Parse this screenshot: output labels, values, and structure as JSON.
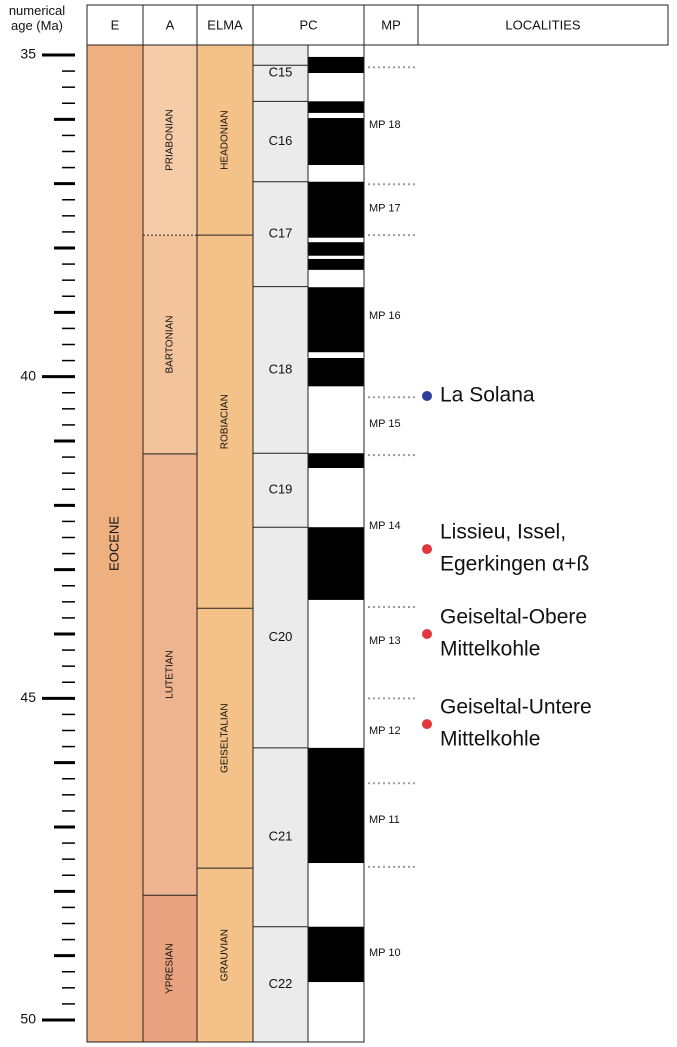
{
  "axis": {
    "label": "numerical age (Ma)",
    "lim": [
      35,
      50
    ],
    "ticks": [
      35,
      40,
      45,
      50
    ]
  },
  "header": {
    "E": "E",
    "A": "A",
    "ELMA": "ELMA",
    "PC": "PC",
    "MP": "MP",
    "LOCALITIES": "LOCALITIES"
  },
  "epochs": [
    {
      "label": "EOCENE",
      "start": 35,
      "end": 50,
      "color": "#edb07e"
    }
  ],
  "ages": [
    {
      "label": "PRIABONIAN",
      "start": 35,
      "end": 37.8,
      "color": "#f5cba8",
      "style": "dashed"
    },
    {
      "label": "BARTONIAN",
      "start": 37.8,
      "end": 41.2,
      "color": "#f3c39c",
      "style": "dashed"
    },
    {
      "label": "LUTETIAN",
      "start": 41.2,
      "end": 48.06,
      "color": "#eeb490",
      "style": "solid"
    },
    {
      "label": "YPRESIAN",
      "start": 48.06,
      "end": 50,
      "color": "#e9a27f",
      "style": "solid"
    }
  ],
  "elma": [
    {
      "label": "HEADONIAN",
      "start": 35,
      "end": 37.8,
      "color": "#f4c189"
    },
    {
      "label": "ROBIACIAN",
      "start": 37.8,
      "end": 43.6,
      "color": "#f4c189"
    },
    {
      "label": "GEISELTALIAN",
      "start": 43.6,
      "end": 47.64,
      "color": "#f4c189"
    },
    {
      "label": "GRAUVIAN",
      "start": 47.64,
      "end": 50,
      "color": "#f4c189"
    }
  ],
  "chrons": [
    {
      "label": "C15",
      "start": 35.16,
      "end": 35.72
    },
    {
      "label": "C16",
      "start": 35.72,
      "end": 36.97
    },
    {
      "label": "C17",
      "start": 36.97,
      "end": 38.6
    },
    {
      "label": "C18",
      "start": 38.6,
      "end": 41.19
    },
    {
      "label": "C19",
      "start": 41.19,
      "end": 42.34
    },
    {
      "label": "C20",
      "start": 42.34,
      "end": 45.77
    },
    {
      "label": "C21",
      "start": 45.77,
      "end": 48.55
    },
    {
      "label": "C22",
      "start": 48.55,
      "end": 50
    }
  ],
  "normal_polarity": [
    [
      35.03,
      35.28
    ],
    [
      35.72,
      35.9
    ],
    [
      35.98,
      36.71
    ],
    [
      36.97,
      37.84
    ],
    [
      37.91,
      38.12
    ],
    [
      38.17,
      38.34
    ],
    [
      38.61,
      39.62
    ],
    [
      39.71,
      40.15
    ],
    [
      41.19,
      41.42
    ],
    [
      42.34,
      43.47
    ],
    [
      45.77,
      47.56
    ],
    [
      48.55,
      49.41
    ]
  ],
  "mp_boundaries": [
    35.19,
    37.01,
    37.8,
    40.32,
    41.22,
    43.58,
    45.0,
    46.32,
    47.62
  ],
  "mp_units": [
    {
      "label": "MP 18",
      "age": 36.09
    },
    {
      "label": "MP 17",
      "age": 37.39
    },
    {
      "label": "MP 16",
      "age": 39.06
    },
    {
      "label": "MP 15",
      "age": 40.74
    },
    {
      "label": "MP 14",
      "age": 42.32
    },
    {
      "label": "MP 13",
      "age": 44.11
    },
    {
      "label": "MP 12",
      "age": 45.51
    },
    {
      "label": "MP 11",
      "age": 46.89
    },
    {
      "label": "MP 10",
      "age": 48.96
    }
  ],
  "localities": [
    {
      "lines": [
        "La Solana"
      ],
      "age": 40.3,
      "color": "#2f3f9e"
    },
    {
      "lines": [
        "Lissieu, Issel,",
        "Egerkingen α+ß"
      ],
      "age": 42.68,
      "color": "#e0383e"
    },
    {
      "lines": [
        "Geiseltal-Obere",
        "Mittelkohle"
      ],
      "age": 44.0,
      "color": "#e0383e"
    },
    {
      "lines": [
        "Geiseltal-Untere",
        "Mittelkohle"
      ],
      "age": 45.4,
      "color": "#e0383e"
    }
  ]
}
